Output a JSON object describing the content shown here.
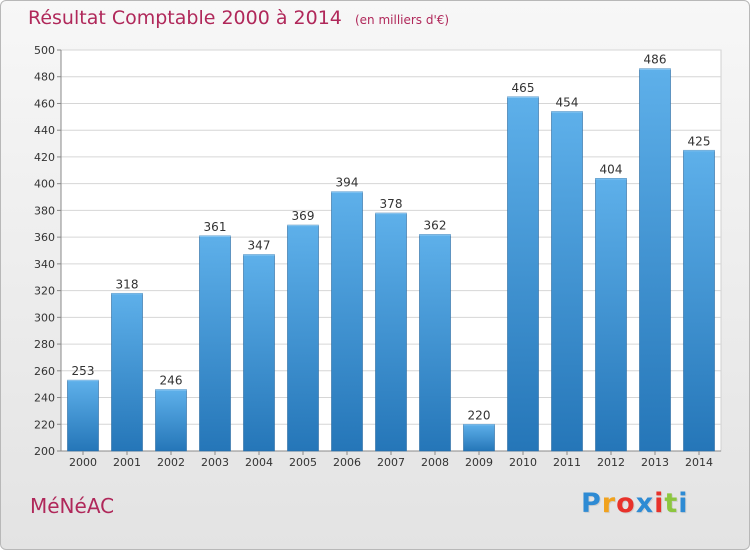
{
  "chart_data": {
    "type": "bar",
    "title": "Résultat Comptable 2000 à 2014",
    "subtitle": "(en milliers d'€)",
    "categories": [
      "2000",
      "2001",
      "2002",
      "2003",
      "2004",
      "2005",
      "2006",
      "2007",
      "2008",
      "2009",
      "2010",
      "2011",
      "2012",
      "2013",
      "2014"
    ],
    "values": [
      253,
      318,
      246,
      361,
      347,
      369,
      394,
      378,
      362,
      220,
      465,
      454,
      404,
      486,
      425
    ],
    "ylim": [
      200,
      500
    ],
    "yticks": [
      200,
      220,
      240,
      260,
      280,
      300,
      320,
      340,
      360,
      380,
      400,
      420,
      440,
      460,
      480,
      500
    ],
    "grid": true,
    "bar_color_top": "#5eb0ea",
    "bar_color_bottom": "#2576b8"
  },
  "footer": {
    "commune": "MéNéAC",
    "logo_letters": [
      "P",
      "r",
      "o",
      "x",
      "i",
      "t",
      "i"
    ],
    "logo_colors": [
      "#2e8bd4",
      "#f0a21e",
      "#e8322b",
      "#2e8bd4",
      "#e8322b",
      "#8cc63f",
      "#2e8bd4"
    ]
  }
}
